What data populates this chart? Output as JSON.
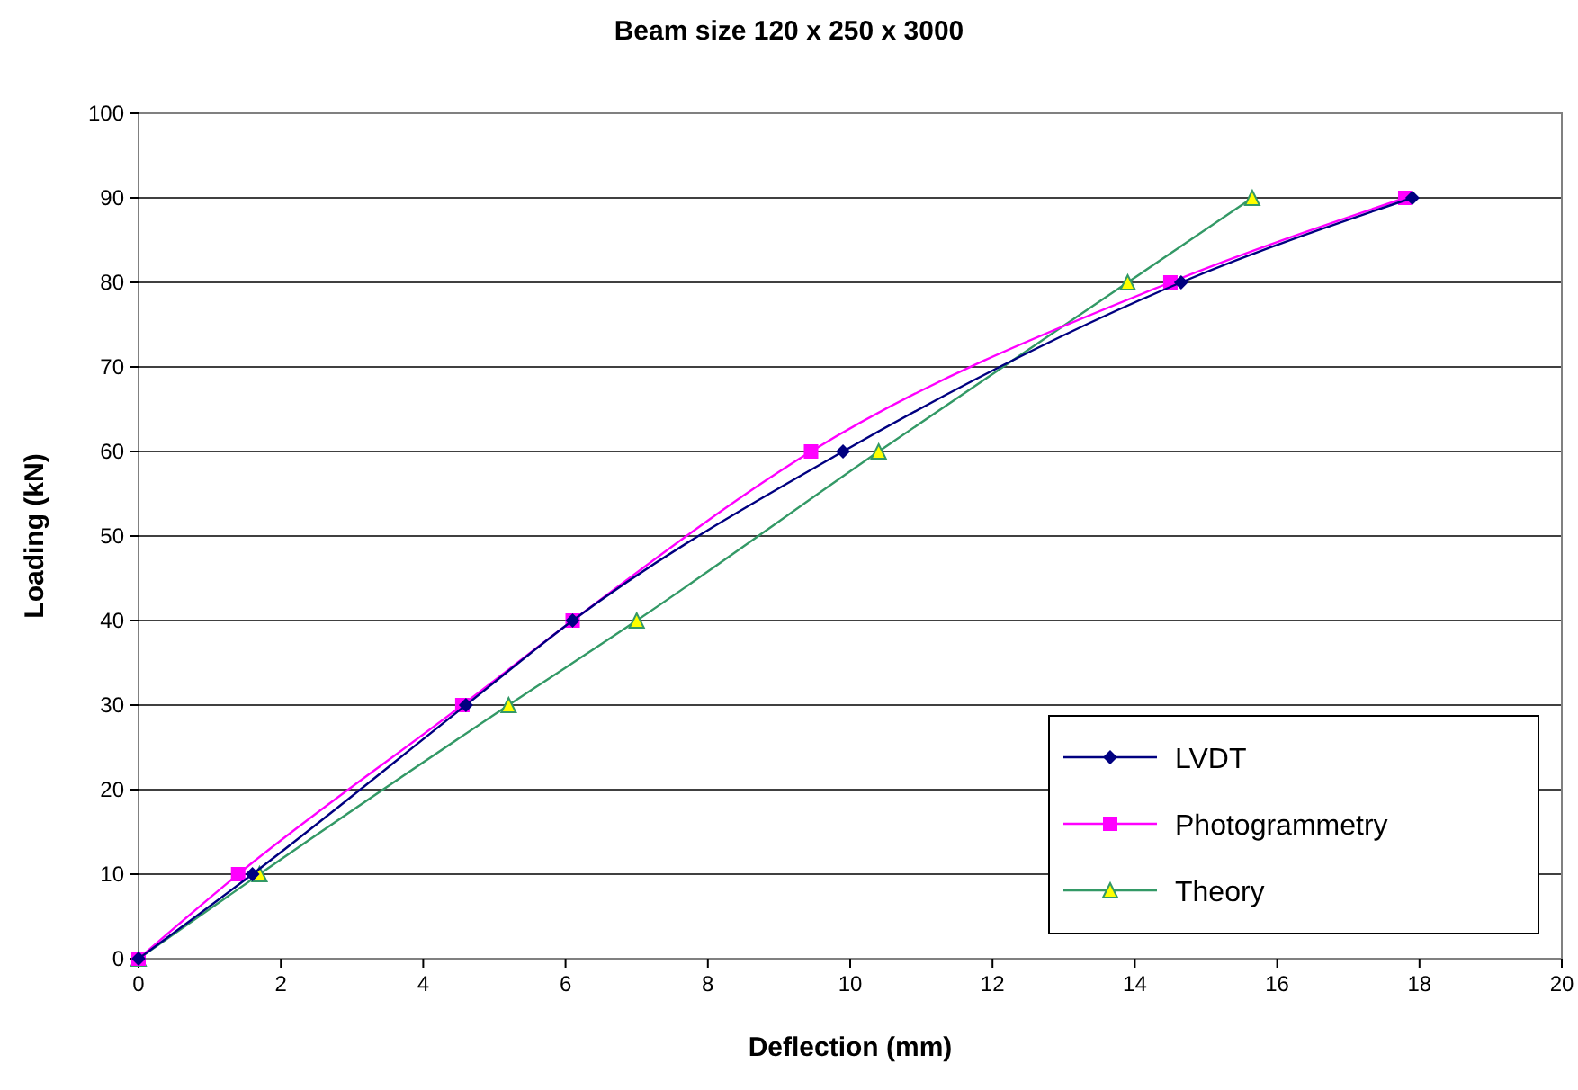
{
  "chart_data": {
    "type": "line",
    "title": "Beam size 120 x 250 x 3000",
    "xlabel": "Deflection (mm)",
    "ylabel": "Loading (kN)",
    "xlim": [
      0,
      20
    ],
    "xticks": [
      0,
      2,
      4,
      6,
      8,
      10,
      12,
      14,
      16,
      18,
      20
    ],
    "ylim": [
      0,
      100
    ],
    "yticks": [
      0,
      10,
      20,
      30,
      40,
      50,
      60,
      70,
      80,
      90,
      100
    ],
    "grid": "y",
    "legend": "bottom right",
    "series": [
      {
        "name": "LVDT",
        "color": "#000080",
        "marker": "diamond",
        "x": [
          0,
          1.6,
          4.6,
          6.1,
          9.9,
          14.65,
          17.9
        ],
        "values": [
          0,
          10,
          30,
          40,
          60,
          80,
          90
        ]
      },
      {
        "name": "Photogrammetry",
        "color": "#ff00ff",
        "marker": "square",
        "x": [
          0,
          1.4,
          4.55,
          6.1,
          9.45,
          14.5,
          17.8
        ],
        "values": [
          0,
          10,
          30,
          40,
          60,
          80,
          90
        ]
      },
      {
        "name": "Theory",
        "color": "#339966",
        "marker": "triangle",
        "x": [
          0,
          1.7,
          5.2,
          7.0,
          10.4,
          13.9,
          15.65
        ],
        "values": [
          0,
          10,
          30,
          40,
          60,
          80,
          90
        ]
      }
    ]
  }
}
